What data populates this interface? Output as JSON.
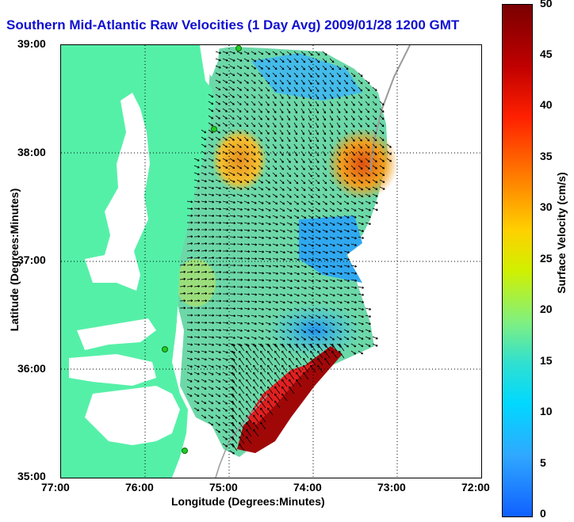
{
  "title": "Southern Mid-Atlantic Raw Velocities (1 Day Avg) 2009/01/28 1200 GMT",
  "axes": {
    "xlabel": "Longitude (Degrees:Minutes)",
    "ylabel": "Latitude (Degrees:Minutes)",
    "xticks": [
      "77:00",
      "76:00",
      "75:00",
      "74:00",
      "73:00",
      "72:00"
    ],
    "yticks": [
      "39:00",
      "38:00",
      "37:00",
      "36:00",
      "35:00"
    ]
  },
  "colorbar": {
    "label": "Surface Velocity (cm/s)",
    "ticks": [
      "50",
      "45",
      "40",
      "35",
      "30",
      "25",
      "20",
      "15",
      "10",
      "5",
      "0"
    ],
    "min": 0,
    "max": 50
  },
  "colors": {
    "land": "#55f0a8",
    "title": "#1010d0",
    "station": "#22cc22"
  }
}
